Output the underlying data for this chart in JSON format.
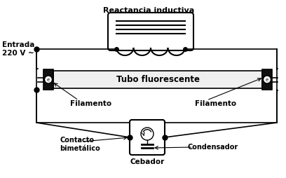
{
  "title": "Reactancia inductiva",
  "bg_color": "#ffffff",
  "line_color": "#000000",
  "text_entrada": "Entrada\n220 V ~",
  "text_tubo": "Tubo fluorescente",
  "text_fil_left": "Filamento",
  "text_fil_right": "Filamento",
  "text_contacto": "Contacto\nbimetálico",
  "text_cebador": "Cebador",
  "text_condensador": "Condensador",
  "figsize": [
    4.08,
    2.54
  ],
  "dpi": 100
}
